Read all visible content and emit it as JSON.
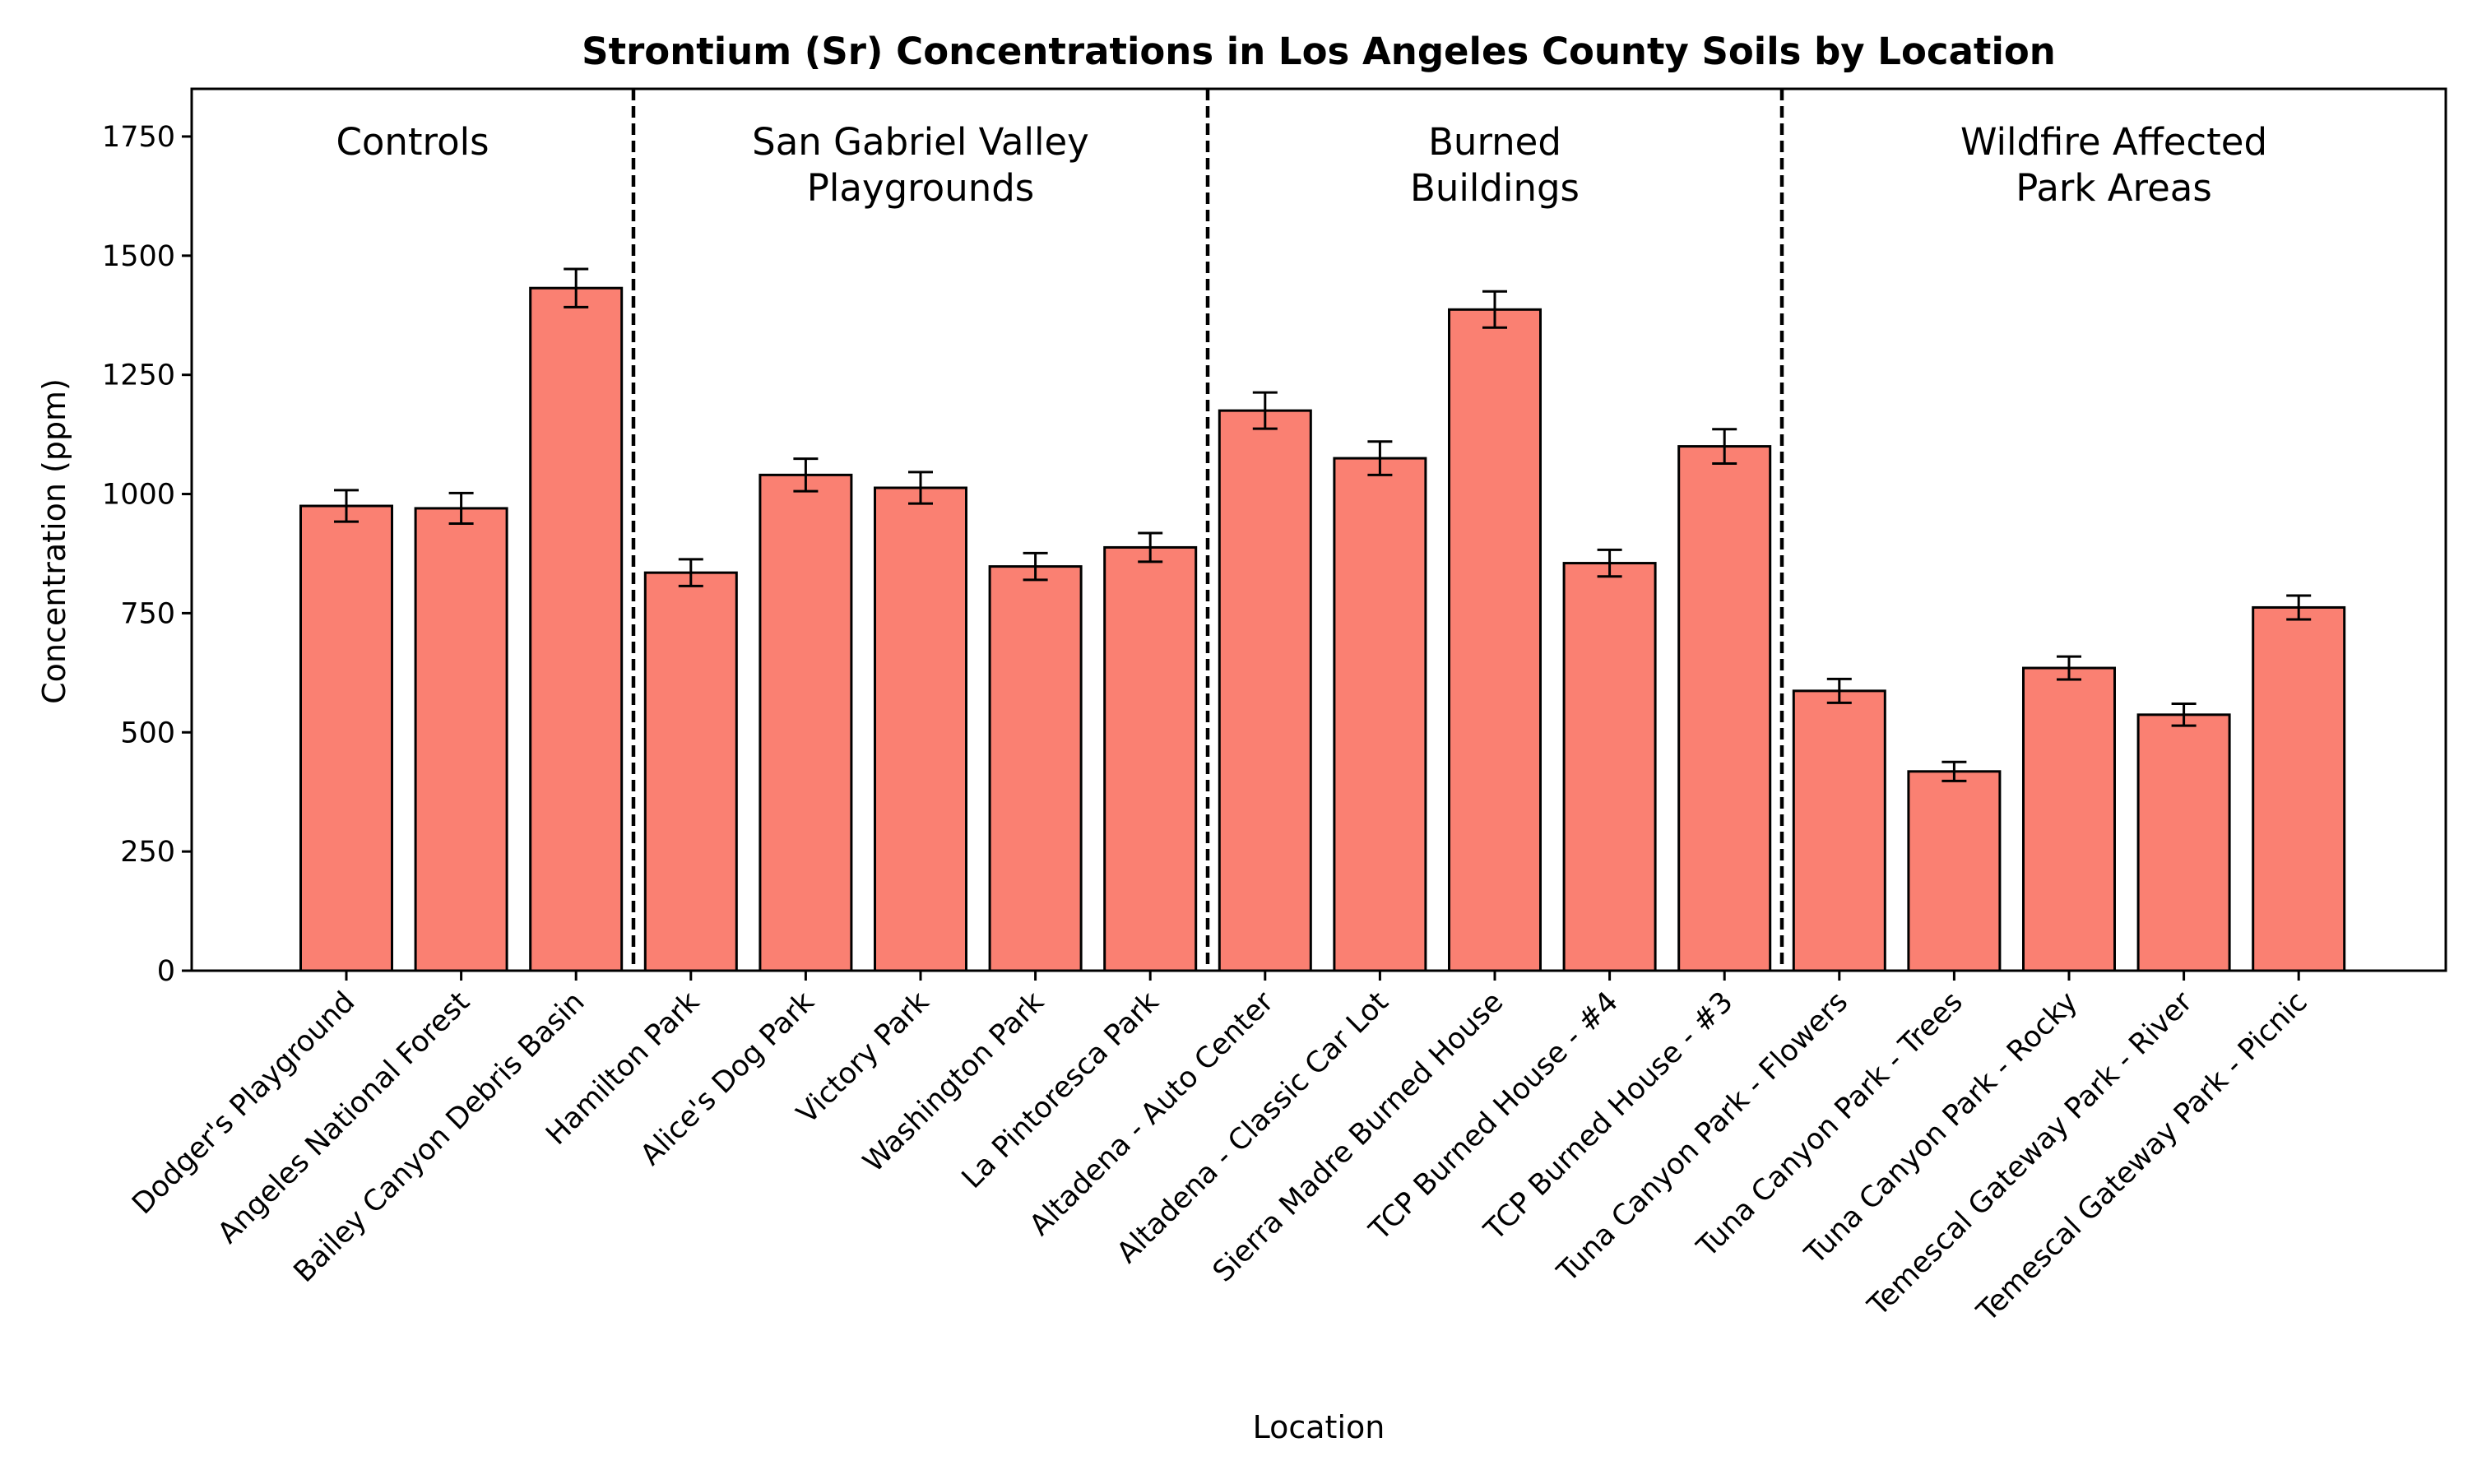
{
  "chart_data": {
    "type": "bar",
    "title": "Strontium (Sr) Concentrations in Los Angeles County Soils by Location",
    "xlabel": "Location",
    "ylabel": "Concentration (ppm)",
    "ylim": [
      0,
      1850
    ],
    "yticks": [
      0,
      250,
      500,
      750,
      1000,
      1250,
      1500,
      1750
    ],
    "grid": false,
    "bar_color": "#fa8072",
    "bar_edge_color": "#000000",
    "categories": [
      "Dodger's Playground",
      "Angeles National Forest",
      "Bailey Canyon Debris Basin",
      "Hamilton Park",
      "Alice's Dog Park",
      "Victory Park",
      "Washington Park",
      "La Pintoresca Park",
      "Altadena - Auto Center",
      "Altadena - Classic Car Lot",
      "Sierra Madre Burned House",
      "TCP Burned House - #4",
      "TCP Burned House - #3",
      "Tuna Canyon Park - Flowers",
      "Tuna Canyon Park - Trees",
      "Tuna Canyon Park - Rocky",
      "Temescal Gateway Park - River",
      "Temescal Gateway Park - Picnic"
    ],
    "values": [
      975,
      970,
      1432,
      835,
      1040,
      1013,
      848,
      888,
      1175,
      1075,
      1387,
      855,
      1100,
      587,
      418,
      635,
      537,
      762
    ],
    "errors": [
      33,
      32,
      40,
      28,
      34,
      33,
      28,
      30,
      38,
      35,
      38,
      28,
      36,
      25,
      20,
      24,
      23,
      25
    ],
    "groups": [
      {
        "label_lines": [
          "Controls"
        ],
        "start": 0,
        "end": 2
      },
      {
        "label_lines": [
          "San Gabriel Valley",
          "Playgrounds"
        ],
        "start": 3,
        "end": 7
      },
      {
        "label_lines": [
          "Burned",
          "Buildings"
        ],
        "start": 8,
        "end": 12
      },
      {
        "label_lines": [
          "Wildfire Affected",
          "Park Areas"
        ],
        "start": 13,
        "end": 17
      }
    ]
  }
}
